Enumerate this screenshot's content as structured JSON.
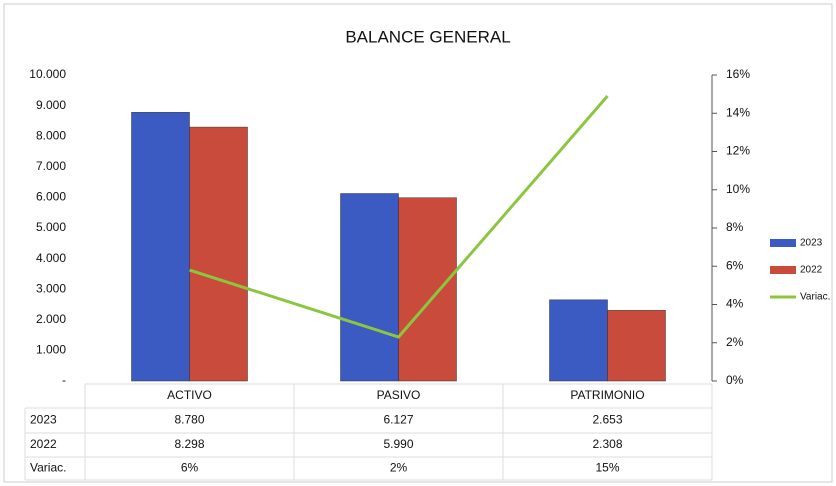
{
  "chart_data": {
    "type": "bar",
    "title": "BALANCE GENERAL",
    "categories": [
      "ACTIVO",
      "PASIVO",
      "PATRIMONIO"
    ],
    "series": [
      {
        "name": "2023",
        "color": "#3b5bc2",
        "values": [
          8780,
          6127,
          2653
        ],
        "value_labels": [
          "8.780",
          "6.127",
          "2.653"
        ]
      },
      {
        "name": "2022",
        "color": "#c94b3b",
        "values": [
          8298,
          5990,
          2308
        ],
        "value_labels": [
          "8.298",
          "5.990",
          "2.308"
        ]
      },
      {
        "name": "Variac.",
        "color": "#8cc63f",
        "type": "line",
        "axis": "y2",
        "values": [
          5.8,
          2.3,
          14.9
        ],
        "value_labels": [
          "6%",
          "2%",
          "15%"
        ]
      }
    ],
    "ylim": [
      0,
      10000
    ],
    "yticks": [
      {
        "value": 0,
        "label": "-"
      },
      {
        "value": 1000,
        "label": "1.000"
      },
      {
        "value": 2000,
        "label": "2.000"
      },
      {
        "value": 3000,
        "label": "3.000"
      },
      {
        "value": 4000,
        "label": "4.000"
      },
      {
        "value": 5000,
        "label": "5.000"
      },
      {
        "value": 6000,
        "label": "6.000"
      },
      {
        "value": 7000,
        "label": "7.000"
      },
      {
        "value": 8000,
        "label": "8.000"
      },
      {
        "value": 9000,
        "label": "9.000"
      },
      {
        "value": 10000,
        "label": "10.000"
      }
    ],
    "y2lim": [
      0,
      16
    ],
    "y2ticks": [
      {
        "value": 0,
        "label": "0%"
      },
      {
        "value": 2,
        "label": "2%"
      },
      {
        "value": 4,
        "label": "4%"
      },
      {
        "value": 6,
        "label": "6%"
      },
      {
        "value": 8,
        "label": "8%"
      },
      {
        "value": 10,
        "label": "10%"
      },
      {
        "value": 12,
        "label": "12%"
      },
      {
        "value": 14,
        "label": "14%"
      },
      {
        "value": 16,
        "label": "16%"
      }
    ],
    "legend": "right"
  }
}
